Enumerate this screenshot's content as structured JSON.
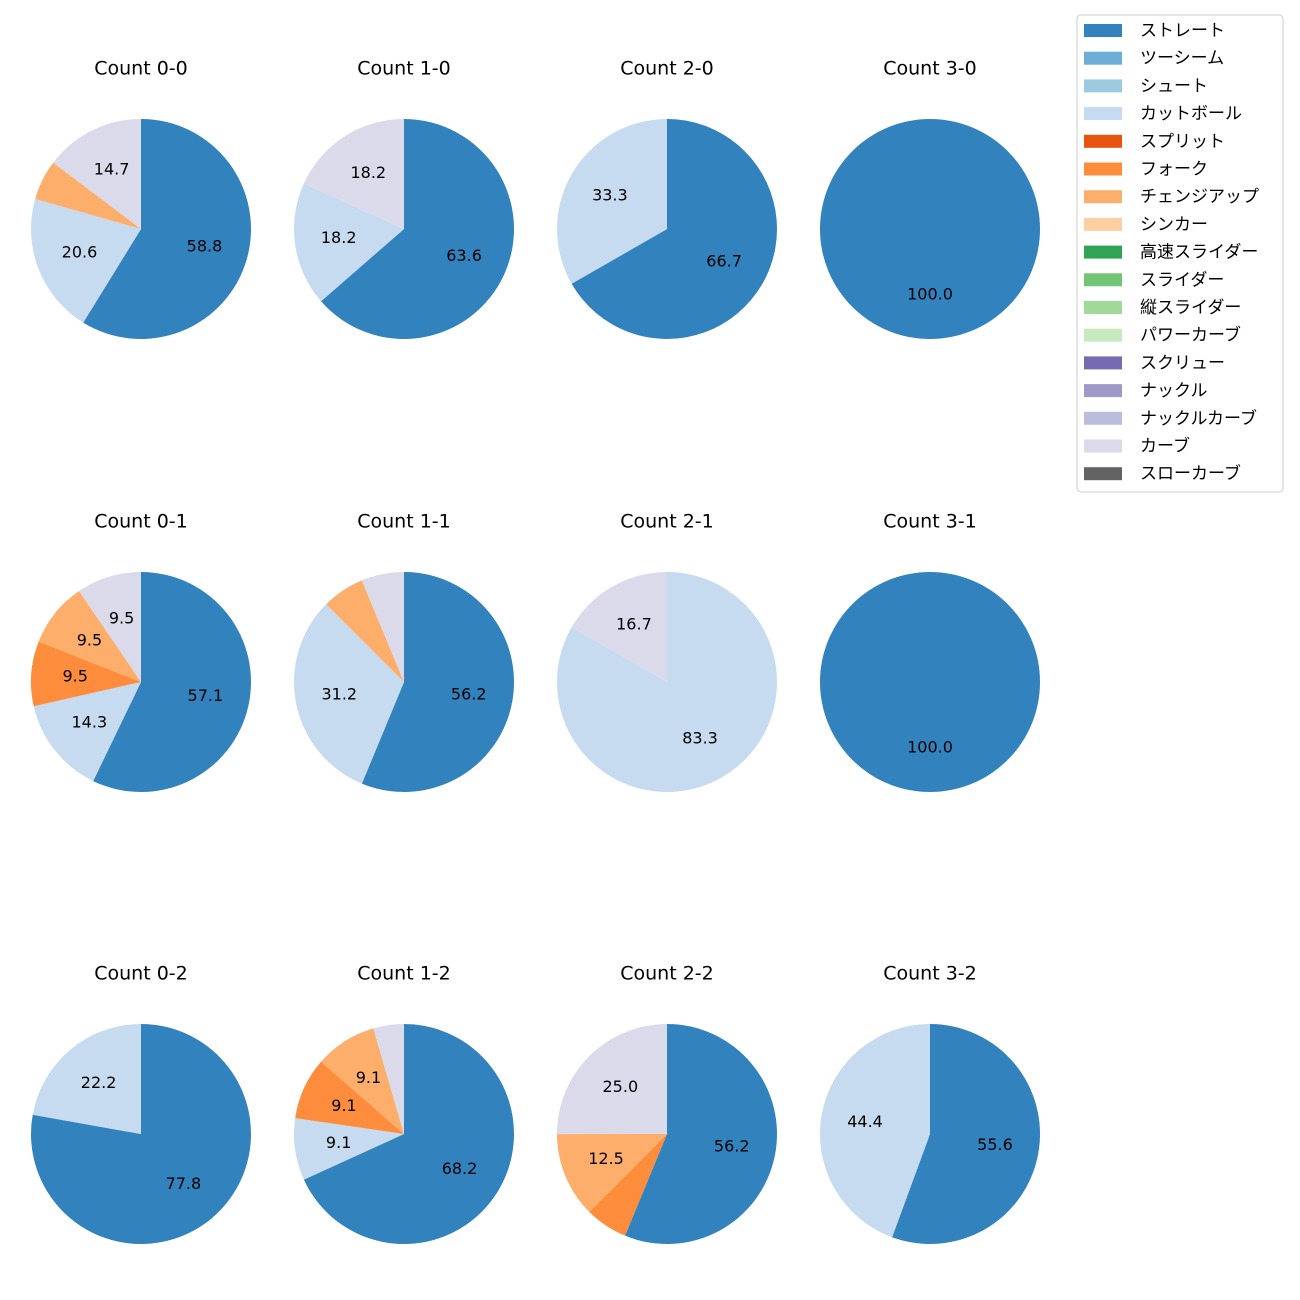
{
  "chart_data": {
    "type": "pie",
    "legend": {
      "placement": "top-right",
      "entries": [
        {
          "name": "ストレート",
          "color": "#3182bd"
        },
        {
          "name": "ツーシーム",
          "color": "#6baed6"
        },
        {
          "name": "シュート",
          "color": "#9ecae1"
        },
        {
          "name": "カットボール",
          "color": "#c6dbef"
        },
        {
          "name": "スプリット",
          "color": "#e6550d"
        },
        {
          "name": "フォーク",
          "color": "#fd8d3c"
        },
        {
          "name": "チェンジアップ",
          "color": "#fdae6b"
        },
        {
          "name": "シンカー",
          "color": "#fdd0a2"
        },
        {
          "name": "高速スライダー",
          "color": "#31a354"
        },
        {
          "name": "スライダー",
          "color": "#74c476"
        },
        {
          "name": "縦スライダー",
          "color": "#a1d99b"
        },
        {
          "name": "パワーカーブ",
          "color": "#c7e9c0"
        },
        {
          "name": "スクリュー",
          "color": "#756bb1"
        },
        {
          "name": "ナックル",
          "color": "#9e9ac8"
        },
        {
          "name": "ナックルカーブ",
          "color": "#bcbddc"
        },
        {
          "name": "カーブ",
          "color": "#dadaeb"
        },
        {
          "name": "スローカーブ",
          "color": "#636363"
        }
      ]
    },
    "panels": [
      {
        "title": "Count 0-0",
        "slices": [
          {
            "type": "ストレート",
            "value": 58.8,
            "label": "58.8"
          },
          {
            "type": "カットボール",
            "value": 20.6,
            "label": "20.6"
          },
          {
            "type": "チェンジアップ",
            "value": 5.9,
            "label": ""
          },
          {
            "type": "カーブ",
            "value": 14.7,
            "label": "14.7"
          }
        ]
      },
      {
        "title": "Count 1-0",
        "slices": [
          {
            "type": "ストレート",
            "value": 63.6,
            "label": "63.6"
          },
          {
            "type": "カットボール",
            "value": 18.2,
            "label": "18.2"
          },
          {
            "type": "カーブ",
            "value": 18.2,
            "label": "18.2"
          }
        ]
      },
      {
        "title": "Count 2-0",
        "slices": [
          {
            "type": "ストレート",
            "value": 66.7,
            "label": "66.7"
          },
          {
            "type": "カットボール",
            "value": 33.3,
            "label": "33.3"
          }
        ]
      },
      {
        "title": "Count 3-0",
        "slices": [
          {
            "type": "ストレート",
            "value": 100.0,
            "label": "100.0"
          }
        ]
      },
      {
        "title": "Count 0-1",
        "slices": [
          {
            "type": "ストレート",
            "value": 57.1,
            "label": "57.1"
          },
          {
            "type": "カットボール",
            "value": 14.3,
            "label": "14.3"
          },
          {
            "type": "フォーク",
            "value": 9.5,
            "label": "9.5"
          },
          {
            "type": "チェンジアップ",
            "value": 9.5,
            "label": "9.5"
          },
          {
            "type": "カーブ",
            "value": 9.5,
            "label": "9.5"
          }
        ]
      },
      {
        "title": "Count 1-1",
        "slices": [
          {
            "type": "ストレート",
            "value": 56.2,
            "label": "56.2"
          },
          {
            "type": "カットボール",
            "value": 31.2,
            "label": "31.2"
          },
          {
            "type": "チェンジアップ",
            "value": 6.25,
            "label": ""
          },
          {
            "type": "カーブ",
            "value": 6.25,
            "label": ""
          }
        ]
      },
      {
        "title": "Count 2-1",
        "slices": [
          {
            "type": "カットボール",
            "value": 83.3,
            "label": "83.3"
          },
          {
            "type": "カーブ",
            "value": 16.7,
            "label": "16.7"
          }
        ]
      },
      {
        "title": "Count 3-1",
        "slices": [
          {
            "type": "ストレート",
            "value": 100.0,
            "label": "100.0"
          }
        ]
      },
      {
        "title": "Count 0-2",
        "slices": [
          {
            "type": "ストレート",
            "value": 77.8,
            "label": "77.8"
          },
          {
            "type": "カットボール",
            "value": 22.2,
            "label": "22.2"
          }
        ]
      },
      {
        "title": "Count 1-2",
        "slices": [
          {
            "type": "ストレート",
            "value": 68.2,
            "label": "68.2"
          },
          {
            "type": "カットボール",
            "value": 9.1,
            "label": "9.1"
          },
          {
            "type": "フォーク",
            "value": 9.1,
            "label": "9.1"
          },
          {
            "type": "チェンジアップ",
            "value": 9.1,
            "label": "9.1"
          },
          {
            "type": "カーブ",
            "value": 4.5,
            "label": ""
          }
        ]
      },
      {
        "title": "Count 2-2",
        "slices": [
          {
            "type": "ストレート",
            "value": 56.2,
            "label": "56.2"
          },
          {
            "type": "フォーク",
            "value": 6.25,
            "label": ""
          },
          {
            "type": "チェンジアップ",
            "value": 12.5,
            "label": "12.5"
          },
          {
            "type": "カーブ",
            "value": 25.0,
            "label": "25.0"
          }
        ]
      },
      {
        "title": "Count 3-2",
        "slices": [
          {
            "type": "ストレート",
            "value": 55.6,
            "label": "55.6"
          },
          {
            "type": "カットボール",
            "value": 44.4,
            "label": "44.4"
          }
        ]
      }
    ]
  }
}
